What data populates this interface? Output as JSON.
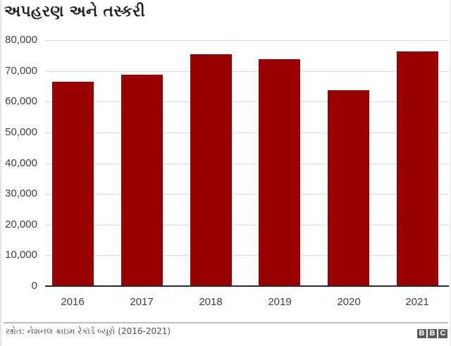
{
  "title": "અપહરણ અને તસ્કરી",
  "source": "સ્ત્રોત: નેશનલ ક્રાઇમ રેકૉર્ડ બ્યૂરો (2016-2021)",
  "brand": {
    "letters": [
      "B",
      "B",
      "C"
    ]
  },
  "colors": {
    "bar": "#990000",
    "grid": "#dcdcdc",
    "baseline": "#2a2a2a",
    "text": "#404040"
  },
  "y_axis": {
    "ticks": [
      "0",
      "10,000",
      "20,000",
      "30,000",
      "40,000",
      "50,000",
      "60,000",
      "70,000",
      "80,000"
    ]
  },
  "x_axis": {
    "ticks": [
      "2016",
      "2017",
      "2018",
      "2019",
      "2020",
      "2021"
    ]
  },
  "chart_data": {
    "type": "bar",
    "title": "અપહરણ અને તસ્કરી",
    "categories": [
      "2016",
      "2017",
      "2018",
      "2019",
      "2020",
      "2021"
    ],
    "values": [
      66400,
      68700,
      75500,
      73900,
      63800,
      76300
    ],
    "xlabel": "",
    "ylabel": "",
    "ylim": [
      0,
      80000
    ],
    "yticks": [
      0,
      10000,
      20000,
      30000,
      40000,
      50000,
      60000,
      70000,
      80000
    ],
    "grid": true,
    "legend": null,
    "source": "સ્ત્રોત: નેશનલ ક્રાઇમ રેકૉર્ડ બ્યૂરો (2016-2021)"
  }
}
